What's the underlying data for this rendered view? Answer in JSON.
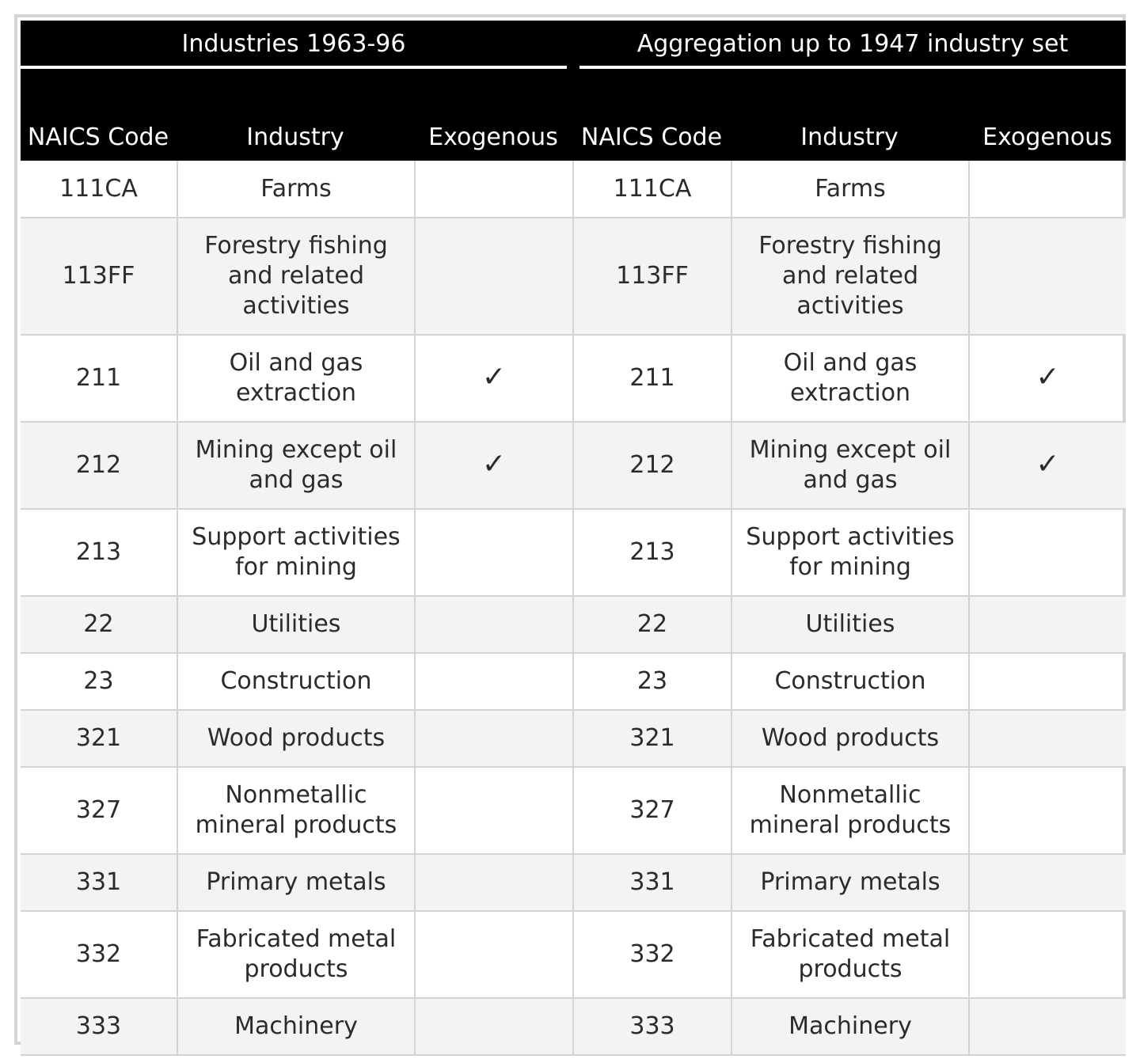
{
  "header": {
    "group_left": "Industries 1963-96",
    "group_right": "Aggregation up to 1947 industry set",
    "left_columns": [
      "NAICS Code",
      "Industry",
      "Exogenous"
    ],
    "right_columns": [
      "NAICS Code",
      "Industry",
      "Exogenous"
    ]
  },
  "check_glyph": "✓",
  "rows": [
    {
      "code": "111CA",
      "industry": "Farms",
      "exogenous": "",
      "code2": "111CA",
      "industry2": "Farms",
      "exogenous2": ""
    },
    {
      "code": "113FF",
      "industry": "Forestry fishing and related activities",
      "exogenous": "",
      "code2": "113FF",
      "industry2": "Forestry fishing and related activities",
      "exogenous2": ""
    },
    {
      "code": "211",
      "industry": "Oil and gas extraction",
      "exogenous": "✓",
      "code2": "211",
      "industry2": "Oil and gas extraction",
      "exogenous2": "✓"
    },
    {
      "code": "212",
      "industry": "Mining except oil and gas",
      "exogenous": "✓",
      "code2": "212",
      "industry2": "Mining except oil and gas",
      "exogenous2": "✓"
    },
    {
      "code": "213",
      "industry": "Support activities for mining",
      "exogenous": "",
      "code2": "213",
      "industry2": "Support activities for mining",
      "exogenous2": ""
    },
    {
      "code": "22",
      "industry": "Utilities",
      "exogenous": "",
      "code2": "22",
      "industry2": "Utilities",
      "exogenous2": ""
    },
    {
      "code": "23",
      "industry": "Construction",
      "exogenous": "",
      "code2": "23",
      "industry2": "Construction",
      "exogenous2": ""
    },
    {
      "code": "321",
      "industry": "Wood products",
      "exogenous": "",
      "code2": "321",
      "industry2": "Wood products",
      "exogenous2": ""
    },
    {
      "code": "327",
      "industry": "Nonmetallic mineral products",
      "exogenous": "",
      "code2": "327",
      "industry2": "Nonmetallic mineral products",
      "exogenous2": ""
    },
    {
      "code": "331",
      "industry": "Primary metals",
      "exogenous": "",
      "code2": "331",
      "industry2": "Primary metals",
      "exogenous2": ""
    },
    {
      "code": "332",
      "industry": "Fabricated metal products",
      "exogenous": "",
      "code2": "332",
      "industry2": "Fabricated metal products",
      "exogenous2": ""
    },
    {
      "code": "333",
      "industry": "Machinery",
      "exogenous": "",
      "code2": "333",
      "industry2": "Machinery",
      "exogenous2": ""
    }
  ]
}
